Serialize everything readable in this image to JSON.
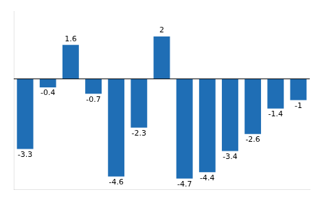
{
  "chart_data": {
    "type": "bar",
    "categories": [
      null,
      null,
      null,
      null,
      null,
      null,
      null,
      null,
      null,
      null,
      null,
      null,
      null
    ],
    "values": [
      -3.3,
      -0.4,
      1.6,
      -0.7,
      -4.6,
      -2.3,
      2.0,
      -4.7,
      -4.4,
      -3.4,
      -2.6,
      -1.4,
      -1.0
    ],
    "color": "#1F6EB5",
    "ylim": [
      -5.2,
      3.2
    ],
    "grid": false,
    "data_labels": true,
    "tick_labels": false
  }
}
